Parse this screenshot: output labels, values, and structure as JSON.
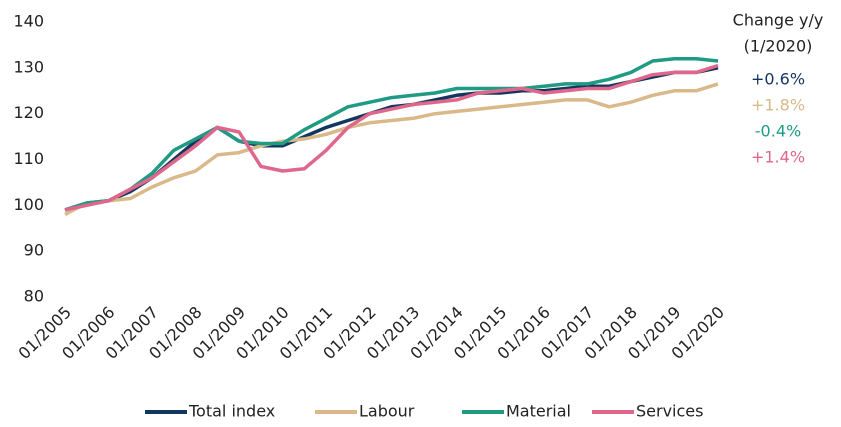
{
  "chart_data": {
    "type": "line",
    "x": [
      "01/2005",
      "07/2005",
      "01/2006",
      "07/2006",
      "01/2007",
      "07/2007",
      "01/2008",
      "07/2008",
      "01/2009",
      "07/2009",
      "01/2010",
      "07/2010",
      "01/2011",
      "07/2011",
      "01/2012",
      "07/2012",
      "01/2013",
      "07/2013",
      "01/2014",
      "07/2014",
      "01/2015",
      "07/2015",
      "01/2016",
      "07/2016",
      "01/2017",
      "07/2017",
      "01/2018",
      "07/2018",
      "01/2019",
      "07/2019",
      "01/2020"
    ],
    "xlim": [
      "01/2005",
      "01/2020"
    ],
    "xticks": [
      "01/2005",
      "01/2006",
      "01/2007",
      "01/2008",
      "01/2009",
      "01/2010",
      "01/2011",
      "01/2012",
      "01/2013",
      "01/2014",
      "01/2015",
      "01/2016",
      "01/2017",
      "01/2018",
      "01/2019",
      "01/2020"
    ],
    "ylim": [
      80,
      140
    ],
    "yticks": [
      80,
      90,
      100,
      110,
      120,
      130,
      140
    ],
    "grid": false,
    "legend": "bottom",
    "series": [
      {
        "name": "Total index",
        "color": "#13365f",
        "values": [
          99,
          100.5,
          101,
          103,
          106,
          110,
          114,
          117,
          114,
          113,
          113,
          115,
          117,
          118.5,
          120,
          121.5,
          122,
          123,
          124,
          124.5,
          124.5,
          125,
          125,
          125.5,
          126,
          126,
          127,
          128,
          129,
          129,
          130
        ]
      },
      {
        "name": "Labour",
        "color": "#d9b98a",
        "values": [
          98,
          100.5,
          101,
          101.5,
          104,
          106,
          107.5,
          111,
          111.5,
          113,
          114,
          114.5,
          115.5,
          117,
          118,
          118.5,
          119,
          120,
          120.5,
          121,
          121.5,
          122,
          122.5,
          123,
          123,
          121.5,
          122.5,
          124,
          125,
          125,
          126.5
        ]
      },
      {
        "name": "Material",
        "color": "#1f9a83",
        "values": [
          99,
          100.5,
          101,
          103.5,
          107,
          112,
          114.5,
          117,
          114,
          113.5,
          113.5,
          116.5,
          119,
          121.5,
          122.5,
          123.5,
          124,
          124.5,
          125.5,
          125.5,
          125.5,
          125.5,
          126,
          126.5,
          126.5,
          127.5,
          129,
          131.5,
          132,
          132,
          131.5
        ]
      },
      {
        "name": "Services",
        "color": "#e0678c",
        "values": [
          99,
          100,
          101,
          103.5,
          106,
          109.5,
          113,
          117,
          116,
          108.5,
          107.5,
          108,
          112,
          117,
          120,
          121,
          122,
          122.5,
          123,
          124.5,
          125,
          125.5,
          124.5,
          125,
          125.5,
          125.5,
          127,
          128.5,
          129,
          129,
          130.5
        ]
      }
    ],
    "annotation_title": [
      "Change y/y",
      "(1/2020)"
    ],
    "change_labels": [
      "+0.6%",
      "+1.8%",
      "-0.4%",
      "+1.4%"
    ]
  }
}
